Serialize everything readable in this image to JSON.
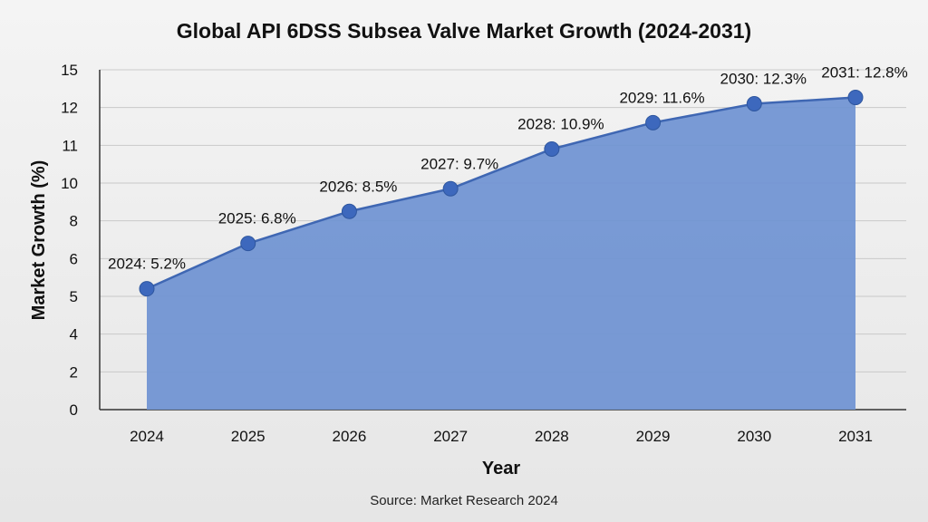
{
  "chart_data": {
    "type": "area",
    "title": "Global API 6DSS Subsea Valve Market Growth (2024-2031)",
    "xlabel": "Year",
    "ylabel": "Market Growth (%)",
    "source": "Source: Market Research 2024",
    "categories": [
      "2024",
      "2025",
      "2026",
      "2027",
      "2028",
      "2029",
      "2030",
      "2031"
    ],
    "values": [
      5.2,
      6.8,
      8.5,
      9.7,
      10.9,
      11.6,
      12.3,
      12.8
    ],
    "data_labels": [
      "2024: 5.2%",
      "2025: 6.8%",
      "2026: 8.5%",
      "2027: 9.7%",
      "2028: 10.9%",
      "2029: 11.6%",
      "2030: 12.3%",
      "2031: 12.8%"
    ],
    "y_tick_labels": [
      "0",
      "2",
      "4",
      "5",
      "6",
      "8",
      "10",
      "11",
      "12",
      "15"
    ],
    "ylim": [
      0,
      15
    ],
    "grid": true,
    "colors": {
      "fill": "#7295d3",
      "line": "#3f67b3",
      "marker": "#3d68bd"
    }
  }
}
